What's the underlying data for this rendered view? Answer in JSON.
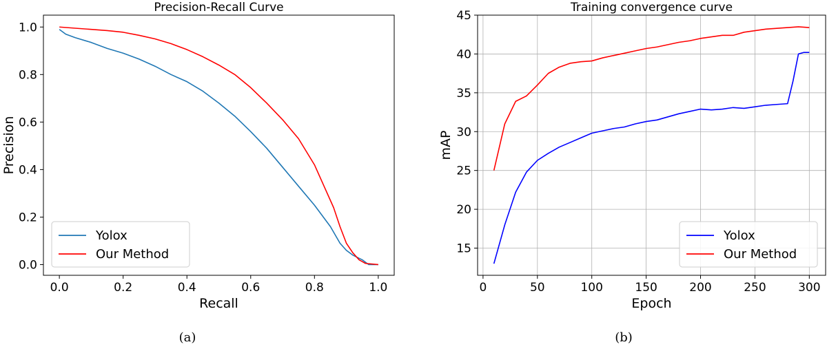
{
  "captions": [
    "(a)",
    "(b)"
  ],
  "chart_data": [
    {
      "type": "line",
      "title": "Precision-Recall Curve",
      "xlabel": "Recall",
      "ylabel": "Precision",
      "xlim": [
        -0.05,
        1.05
      ],
      "ylim": [
        -0.045,
        1.05
      ],
      "xticks": [
        0.0,
        0.2,
        0.4,
        0.6,
        0.8,
        1.0
      ],
      "yticks": [
        0.0,
        0.2,
        0.4,
        0.6,
        0.8,
        1.0
      ],
      "xtick_labels": [
        "0.0",
        "0.2",
        "0.4",
        "0.6",
        "0.8",
        "1.0"
      ],
      "ytick_labels": [
        "0.0",
        "0.2",
        "0.4",
        "0.6",
        "0.8",
        "1.0"
      ],
      "grid": false,
      "legend": "bottom-left",
      "series": [
        {
          "name": "Yolox",
          "color": "#1f77b4",
          "x": [
            0.0,
            0.02,
            0.05,
            0.1,
            0.15,
            0.2,
            0.25,
            0.3,
            0.35,
            0.4,
            0.45,
            0.5,
            0.55,
            0.6,
            0.65,
            0.7,
            0.75,
            0.8,
            0.85,
            0.88,
            0.9,
            0.92,
            0.95,
            0.97,
            1.0
          ],
          "y": [
            0.99,
            0.97,
            0.955,
            0.935,
            0.91,
            0.89,
            0.865,
            0.835,
            0.8,
            0.77,
            0.73,
            0.68,
            0.625,
            0.56,
            0.49,
            0.41,
            0.33,
            0.25,
            0.16,
            0.09,
            0.06,
            0.04,
            0.02,
            0.0,
            0.0
          ]
        },
        {
          "name": "Our Method",
          "color": "#ff0000",
          "x": [
            0.0,
            0.05,
            0.1,
            0.15,
            0.2,
            0.25,
            0.3,
            0.35,
            0.4,
            0.45,
            0.5,
            0.55,
            0.6,
            0.65,
            0.7,
            0.75,
            0.8,
            0.83,
            0.86,
            0.88,
            0.9,
            0.92,
            0.94,
            0.96,
            1.0
          ],
          "y": [
            1.0,
            0.995,
            0.99,
            0.985,
            0.978,
            0.965,
            0.95,
            0.93,
            0.905,
            0.875,
            0.84,
            0.8,
            0.745,
            0.68,
            0.61,
            0.53,
            0.42,
            0.33,
            0.24,
            0.16,
            0.09,
            0.05,
            0.02,
            0.005,
            0.0
          ]
        }
      ]
    },
    {
      "type": "line",
      "title": "Training convergence curve",
      "xlabel": "Epoch",
      "ylabel": "mAP",
      "xlim": [
        -5,
        315
      ],
      "ylim": [
        11.5,
        45
      ],
      "xticks": [
        0,
        50,
        100,
        150,
        200,
        250,
        300
      ],
      "yticks": [
        15,
        20,
        25,
        30,
        35,
        40,
        45
      ],
      "xtick_labels": [
        "0",
        "50",
        "100",
        "150",
        "200",
        "250",
        "300"
      ],
      "ytick_labels": [
        "15",
        "20",
        "25",
        "30",
        "35",
        "40",
        "45"
      ],
      "grid": true,
      "legend": "bottom-right",
      "series": [
        {
          "name": "Yolox",
          "color": "#0000ff",
          "x": [
            10,
            20,
            30,
            40,
            50,
            60,
            70,
            80,
            90,
            100,
            110,
            120,
            130,
            140,
            150,
            160,
            170,
            180,
            190,
            200,
            210,
            220,
            230,
            240,
            250,
            260,
            270,
            280,
            285,
            290,
            295,
            300
          ],
          "y": [
            13.0,
            18.0,
            22.2,
            24.8,
            26.3,
            27.2,
            28.0,
            28.6,
            29.2,
            29.8,
            30.1,
            30.4,
            30.6,
            31.0,
            31.3,
            31.5,
            31.9,
            32.3,
            32.6,
            32.9,
            32.8,
            32.9,
            33.1,
            33.0,
            33.2,
            33.4,
            33.5,
            33.6,
            36.5,
            40.0,
            40.2,
            40.2
          ]
        },
        {
          "name": "Our Method",
          "color": "#ff0000",
          "x": [
            10,
            20,
            30,
            40,
            50,
            60,
            70,
            80,
            90,
            100,
            110,
            120,
            130,
            140,
            150,
            160,
            170,
            180,
            190,
            200,
            210,
            220,
            230,
            240,
            250,
            260,
            270,
            280,
            290,
            300
          ],
          "y": [
            25.0,
            31.0,
            33.9,
            34.6,
            36.0,
            37.5,
            38.3,
            38.8,
            39.0,
            39.1,
            39.5,
            39.8,
            40.1,
            40.4,
            40.7,
            40.9,
            41.2,
            41.5,
            41.7,
            42.0,
            42.2,
            42.4,
            42.4,
            42.8,
            43.0,
            43.2,
            43.3,
            43.4,
            43.5,
            43.4
          ]
        }
      ]
    }
  ]
}
